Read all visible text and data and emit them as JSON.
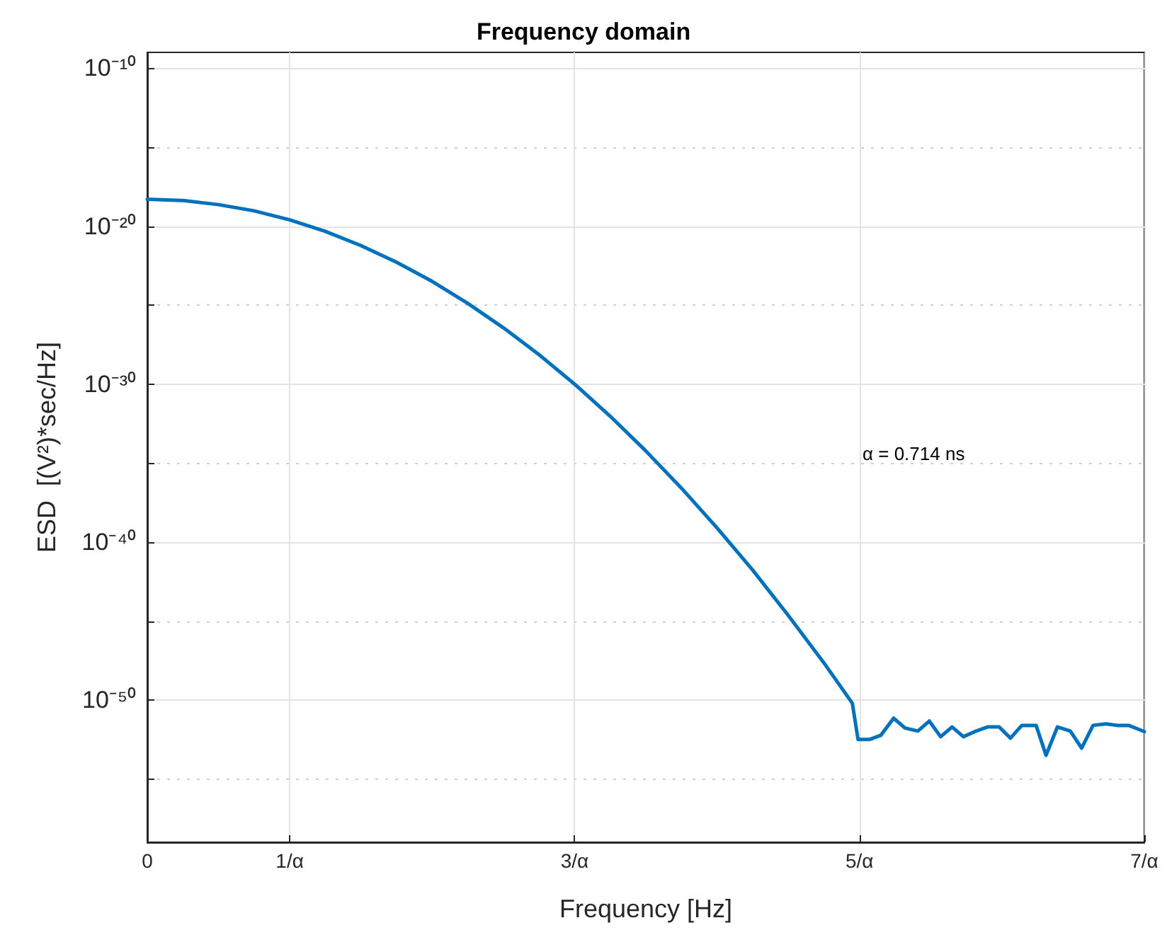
{
  "chart_data": {
    "type": "line",
    "title": "Frequency domain",
    "xlabel": "Frequency [Hz]",
    "ylabel": "ESD  [(V²)*sec/Hz]",
    "annotations": [
      "α = 0.714 ns"
    ],
    "x": [
      0,
      0.25,
      0.5,
      0.75,
      1,
      1.25,
      1.5,
      1.75,
      2,
      2.25,
      2.5,
      2.75,
      3,
      3.25,
      3.5,
      3.75,
      4,
      4.25,
      4.5,
      4.75,
      4.95,
      4.99,
      5.07,
      5.15,
      5.24,
      5.32,
      5.41,
      5.49,
      5.57,
      5.65,
      5.73,
      5.82,
      5.9,
      5.98,
      6.06,
      6.14,
      6.24,
      6.31,
      6.39,
      6.48,
      6.56,
      6.64,
      6.73,
      6.81,
      6.89,
      6.97,
      7
    ],
    "series": [
      {
        "color": "#0072bd",
        "values": [
          5e-19,
          4.2e-19,
          2.3e-19,
          9.3e-20,
          2.5e-20,
          4.7e-21,
          5.9e-22,
          5.2e-23,
          3.2e-24,
          1.3e-25,
          3.7e-27,
          7.4e-29,
          1e-30,
          9.3e-33,
          5.9e-35,
          2.6e-37,
          7.9e-40,
          1.7e-42,
          2.3e-45,
          2.3e-48,
          6.3e-51,
          3.2e-53,
          3.2e-53,
          5.9e-53,
          7.1e-52,
          1.7e-52,
          1.1e-52,
          4.7e-52,
          4.8e-53,
          2e-52,
          4.8e-53,
          1.1e-52,
          2e-52,
          2e-52,
          3.9e-53,
          2.5e-52,
          2.5e-52,
          3.2e-54,
          2e-52,
          1.1e-52,
          9.1e-54,
          2.5e-52,
          3.1e-52,
          2.5e-52,
          2.5e-52,
          1.3e-52,
          1e-52
        ]
      }
    ],
    "xlim": [
      0,
      7
    ],
    "xticks": [
      0,
      {
        "value": 1,
        "label": "1/α"
      },
      {
        "value": 3,
        "label": "3/α"
      },
      {
        "value": 5,
        "label": "5/α"
      },
      {
        "value": 7,
        "label": "7/α"
      }
    ],
    "log": "y",
    "ylim": [
      1e-59,
      1e-09
    ],
    "yticks": [
      {
        "value": 1e-10,
        "label": "10⁻¹⁰"
      },
      {
        "value": 1e-15,
        "label": null
      },
      {
        "value": 1e-20,
        "label": "10⁻²⁰"
      },
      {
        "value": 1e-25,
        "label": null
      },
      {
        "value": 1e-30,
        "label": "10⁻³⁰"
      },
      {
        "value": 1e-35,
        "label": null
      },
      {
        "value": 1e-40,
        "label": "10⁻⁴⁰"
      },
      {
        "value": 1e-45,
        "label": null
      },
      {
        "value": 1e-50,
        "label": "10⁻⁵⁰"
      },
      {
        "value": 1e-55,
        "label": null
      }
    ],
    "grid": true,
    "marker": "none",
    "line_style": "solid"
  }
}
